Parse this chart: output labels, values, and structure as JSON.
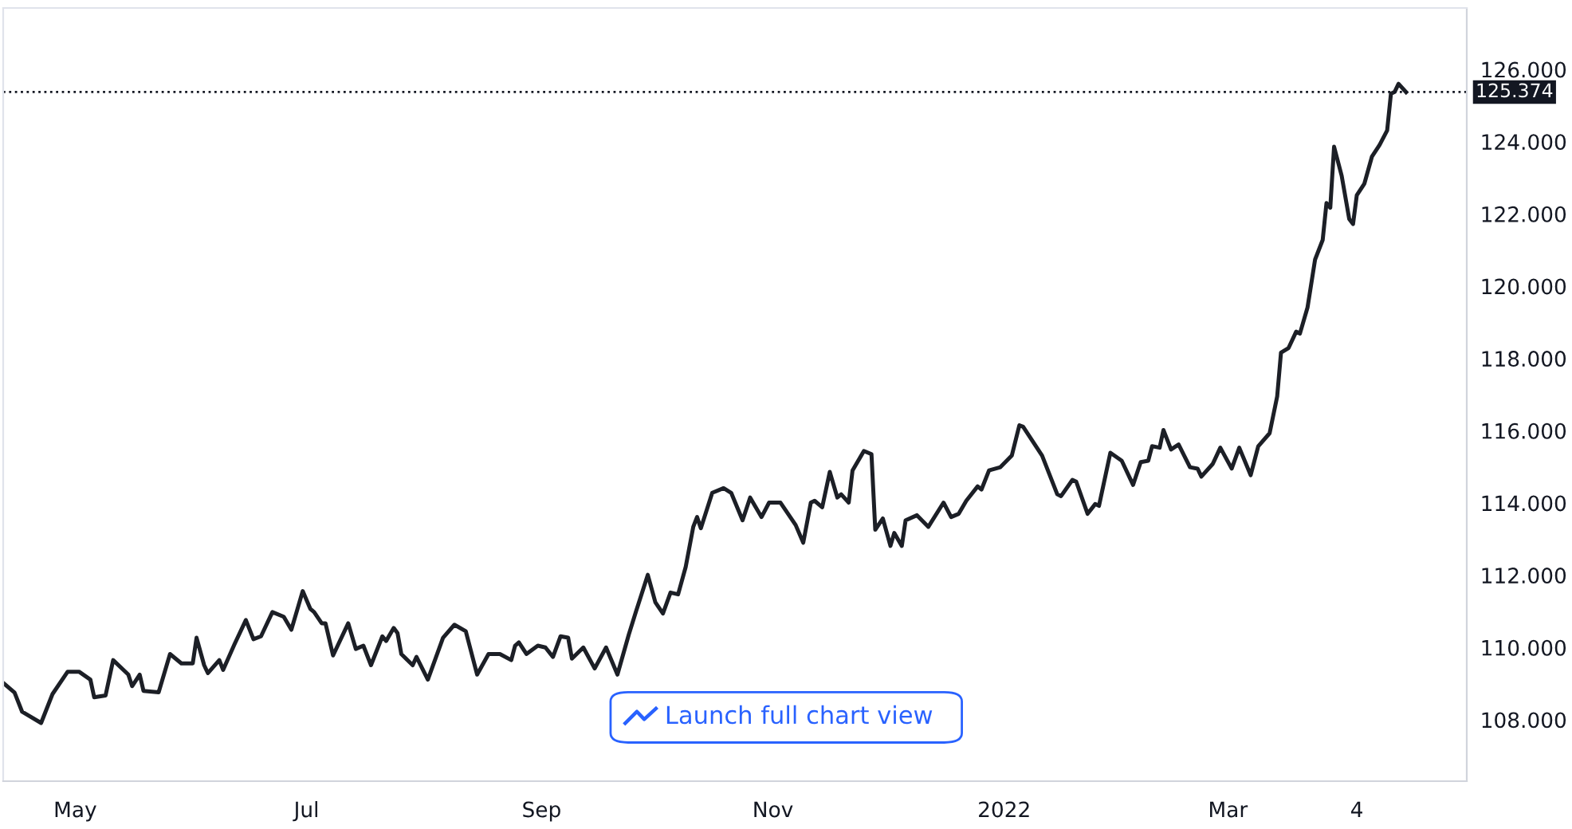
{
  "chart_data": {
    "type": "line",
    "x": [
      "2021-04-12",
      "2021-04-15",
      "2021-04-17",
      "2021-04-22",
      "2021-04-25",
      "2021-04-29",
      "2021-05-02",
      "2021-05-05",
      "2021-05-06",
      "2021-05-09",
      "2021-05-11",
      "2021-05-15",
      "2021-05-16",
      "2021-05-18",
      "2021-05-19",
      "2021-05-23",
      "2021-05-26",
      "2021-05-29",
      "2021-06-01",
      "2021-06-02",
      "2021-06-04",
      "2021-06-05",
      "2021-06-08",
      "2021-06-09",
      "2021-06-12",
      "2021-06-15",
      "2021-06-17",
      "2021-06-19",
      "2021-06-22",
      "2021-06-25",
      "2021-06-27",
      "2021-06-30",
      "2021-07-02",
      "2021-07-03",
      "2021-07-05",
      "2021-07-06",
      "2021-07-08",
      "2021-07-12",
      "2021-07-14",
      "2021-07-16",
      "2021-07-18",
      "2021-07-21",
      "2021-07-22",
      "2021-07-24",
      "2021-07-25",
      "2021-07-26",
      "2021-07-29",
      "2021-07-30",
      "2021-08-02",
      "2021-08-06",
      "2021-08-09",
      "2021-08-12",
      "2021-08-15",
      "2021-08-18",
      "2021-08-21",
      "2021-08-24",
      "2021-08-25",
      "2021-08-26",
      "2021-08-28",
      "2021-08-31",
      "2021-09-02",
      "2021-09-04",
      "2021-09-06",
      "2021-09-08",
      "2021-09-09",
      "2021-09-12",
      "2021-09-15",
      "2021-09-18",
      "2021-09-21",
      "2021-09-24",
      "2021-09-26",
      "2021-09-29",
      "2021-10-01",
      "2021-10-03",
      "2021-10-05",
      "2021-10-07",
      "2021-10-09",
      "2021-10-11",
      "2021-10-12",
      "2021-10-13",
      "2021-10-16",
      "2021-10-19",
      "2021-10-21",
      "2021-10-24",
      "2021-10-26",
      "2021-10-29",
      "2021-10-31",
      "2021-11-03",
      "2021-11-07",
      "2021-11-09",
      "2021-11-11",
      "2021-11-12",
      "2021-11-14",
      "2021-11-16",
      "2021-11-18",
      "2021-11-19",
      "2021-11-21",
      "2021-11-22",
      "2021-11-25",
      "2021-11-27",
      "2021-11-28",
      "2021-11-30",
      "2021-12-02",
      "2021-12-03",
      "2021-12-05",
      "2021-12-06",
      "2021-12-09",
      "2021-12-12",
      "2021-12-16",
      "2021-12-18",
      "2021-12-20",
      "2021-12-22",
      "2021-12-25",
      "2021-12-26",
      "2021-12-28",
      "2021-12-31",
      "2022-01-03",
      "2022-01-05",
      "2022-01-06",
      "2022-01-11",
      "2022-01-15",
      "2022-01-16",
      "2022-01-19",
      "2022-01-20",
      "2022-01-23",
      "2022-01-25",
      "2022-01-26",
      "2022-01-29",
      "2022-02-01",
      "2022-02-04",
      "2022-02-06",
      "2022-02-08",
      "2022-02-09",
      "2022-02-11",
      "2022-02-12",
      "2022-02-14",
      "2022-02-16",
      "2022-02-19",
      "2022-02-21",
      "2022-02-22",
      "2022-02-25",
      "2022-02-27",
      "2022-03-02",
      "2022-03-04",
      "2022-03-07",
      "2022-03-09",
      "2022-03-12",
      "2022-03-14",
      "2022-03-15",
      "2022-03-17",
      "2022-03-19",
      "2022-03-20",
      "2022-03-22",
      "2022-03-24",
      "2022-03-26",
      "2022-03-27",
      "2022-03-28",
      "2022-03-29",
      "2022-03-31",
      "2022-04-02",
      "2022-04-03",
      "2022-04-04",
      "2022-04-06",
      "2022-04-08",
      "2022-04-10",
      "2022-04-12",
      "2022-04-13",
      "2022-04-14",
      "2022-04-15",
      "2022-04-17"
    ],
    "series": [
      {
        "color": "#1c1f26",
        "values": [
          109.02,
          108.75,
          108.22,
          107.91,
          108.71,
          109.33,
          109.33,
          109.11,
          108.62,
          108.67,
          109.65,
          109.25,
          108.93,
          109.25,
          108.8,
          108.76,
          109.82,
          109.56,
          109.56,
          110.27,
          109.51,
          109.29,
          109.65,
          109.38,
          110.09,
          110.76,
          110.23,
          110.31,
          110.98,
          110.85,
          110.49,
          111.56,
          111.07,
          110.98,
          110.67,
          110.67,
          109.78,
          110.67,
          109.96,
          110.05,
          109.51,
          110.31,
          110.18,
          110.54,
          110.4,
          109.82,
          109.51,
          109.74,
          109.11,
          110.27,
          110.63,
          110.45,
          109.25,
          109.82,
          109.82,
          109.65,
          110.05,
          110.14,
          109.82,
          110.05,
          110.0,
          109.74,
          110.31,
          110.27,
          109.69,
          110.0,
          109.42,
          110.0,
          109.25,
          110.36,
          111.03,
          112.01,
          111.25,
          110.94,
          111.52,
          111.47,
          112.23,
          113.34,
          113.61,
          113.3,
          114.28,
          114.41,
          114.28,
          113.52,
          114.15,
          113.61,
          114.01,
          114.01,
          113.39,
          112.9,
          114.01,
          114.06,
          113.88,
          114.86,
          114.15,
          114.24,
          114.01,
          114.9,
          115.44,
          115.35,
          113.26,
          113.57,
          112.81,
          113.17,
          112.81,
          113.52,
          113.66,
          113.34,
          114.01,
          113.61,
          113.7,
          114.06,
          114.46,
          114.37,
          114.9,
          114.99,
          115.31,
          116.15,
          116.11,
          115.31,
          114.24,
          114.19,
          114.64,
          114.59,
          113.7,
          113.97,
          113.92,
          115.39,
          115.17,
          114.5,
          115.13,
          115.17,
          115.57,
          115.53,
          116.02,
          115.48,
          115.62,
          114.99,
          114.95,
          114.73,
          115.08,
          115.53,
          114.95,
          115.53,
          114.77,
          115.57,
          115.93,
          116.95,
          118.16,
          118.29,
          118.74,
          118.69,
          119.41,
          120.74,
          121.28,
          122.3,
          122.17,
          123.86,
          123.06,
          121.86,
          121.72,
          122.52,
          122.84,
          123.59,
          123.91,
          124.31,
          125.33,
          125.38,
          125.6,
          125.37
        ]
      }
    ],
    "xlim": [
      "2021-04-12",
      "2022-05-03"
    ],
    "xticks": [
      {
        "value": "2021-05-01",
        "label": "May"
      },
      {
        "value": "2021-07-01",
        "label": "Jul"
      },
      {
        "value": "2021-09-01",
        "label": "Sep"
      },
      {
        "value": "2021-11-01",
        "label": "Nov"
      },
      {
        "value": "2022-01-01",
        "label": "2022"
      },
      {
        "value": "2022-03-01",
        "label": "Mar"
      },
      {
        "value": "2022-04-04",
        "label": "4"
      }
    ],
    "ylim": [
      106.3,
      127.7
    ],
    "yticks": [
      {
        "value": 108,
        "label": "108.000"
      },
      {
        "value": 110,
        "label": "110.000"
      },
      {
        "value": 112,
        "label": "112.000"
      },
      {
        "value": 114,
        "label": "114.000"
      },
      {
        "value": 116,
        "label": "116.000"
      },
      {
        "value": 118,
        "label": "118.000"
      },
      {
        "value": 120,
        "label": "120.000"
      },
      {
        "value": 122,
        "label": "122.000"
      },
      {
        "value": 124,
        "label": "124.000"
      },
      {
        "value": 126,
        "label": "126.000"
      }
    ],
    "ref_lines": [
      {
        "axis": "y",
        "value": 125.374,
        "label": "125.374",
        "color": "#131722",
        "line_style": "dotted"
      }
    ],
    "annotations": [
      "Launch full chart view"
    ],
    "grid": false,
    "legend": false
  }
}
